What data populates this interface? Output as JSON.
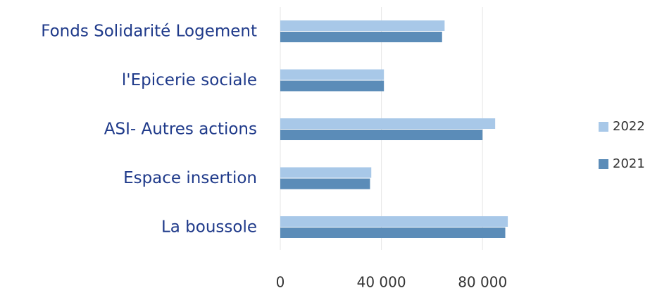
{
  "chart_data": {
    "type": "bar",
    "orientation": "horizontal",
    "categories": [
      "Fonds Solidarité Logement",
      "l'Epicerie sociale",
      "ASI- Autres actions",
      "Espace insertion",
      "La boussole"
    ],
    "series": [
      {
        "name": "2022",
        "color": "#a8c8e8",
        "values": [
          65000,
          41000,
          85000,
          36000,
          90000
        ]
      },
      {
        "name": "2021",
        "color": "#5b8cb8",
        "values": [
          64000,
          41000,
          80000,
          35500,
          89000
        ]
      }
    ],
    "xlim": [
      0,
      100000
    ],
    "xticks": [
      0,
      {
        "value": 40000,
        "label": "40 000"
      },
      {
        "value": 80000,
        "label": "80 000"
      }
    ],
    "grid": true,
    "legend": "right"
  }
}
